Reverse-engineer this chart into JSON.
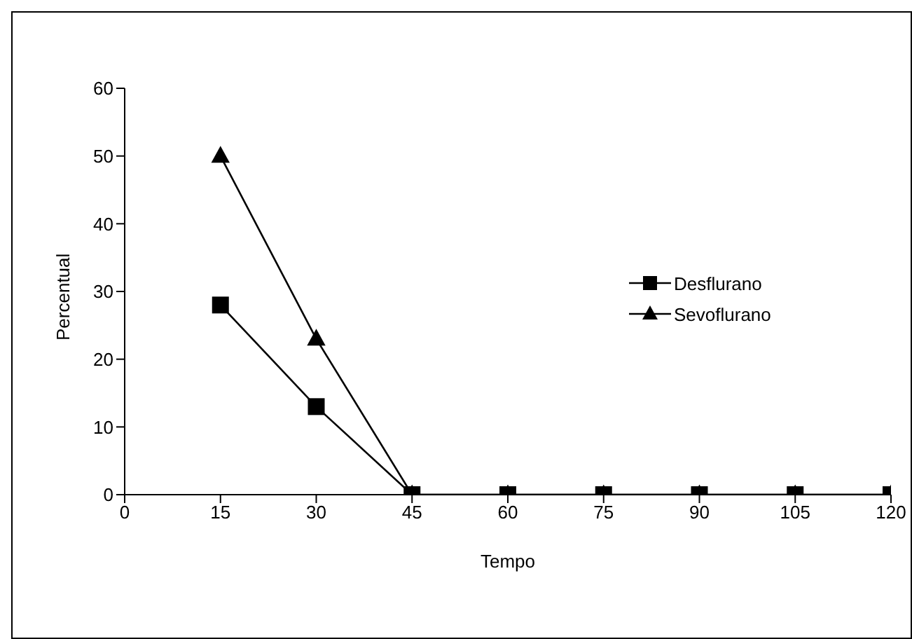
{
  "chart_data": {
    "type": "line",
    "xlabel": "Tempo",
    "ylabel": "Percentual",
    "x": [
      15,
      30,
      45,
      60,
      75,
      90,
      105,
      120
    ],
    "series": [
      {
        "name": "Desflurano",
        "color": "#000000",
        "marker": "square",
        "values": [
          28,
          13,
          0,
          0,
          0,
          0,
          0,
          0
        ]
      },
      {
        "name": "Sevoflurano",
        "color": "#000000",
        "marker": "triangle",
        "values": [
          50,
          23,
          0,
          0,
          0,
          0,
          0,
          0
        ]
      }
    ],
    "xlim": [
      0,
      120
    ],
    "xticks": [
      0,
      15,
      30,
      45,
      60,
      75,
      90,
      105,
      120
    ],
    "ylim": [
      0,
      60
    ],
    "yticks": [
      0,
      10,
      20,
      30,
      40,
      50,
      60
    ],
    "grid": false,
    "legend": "right",
    "line_style": "solid"
  }
}
